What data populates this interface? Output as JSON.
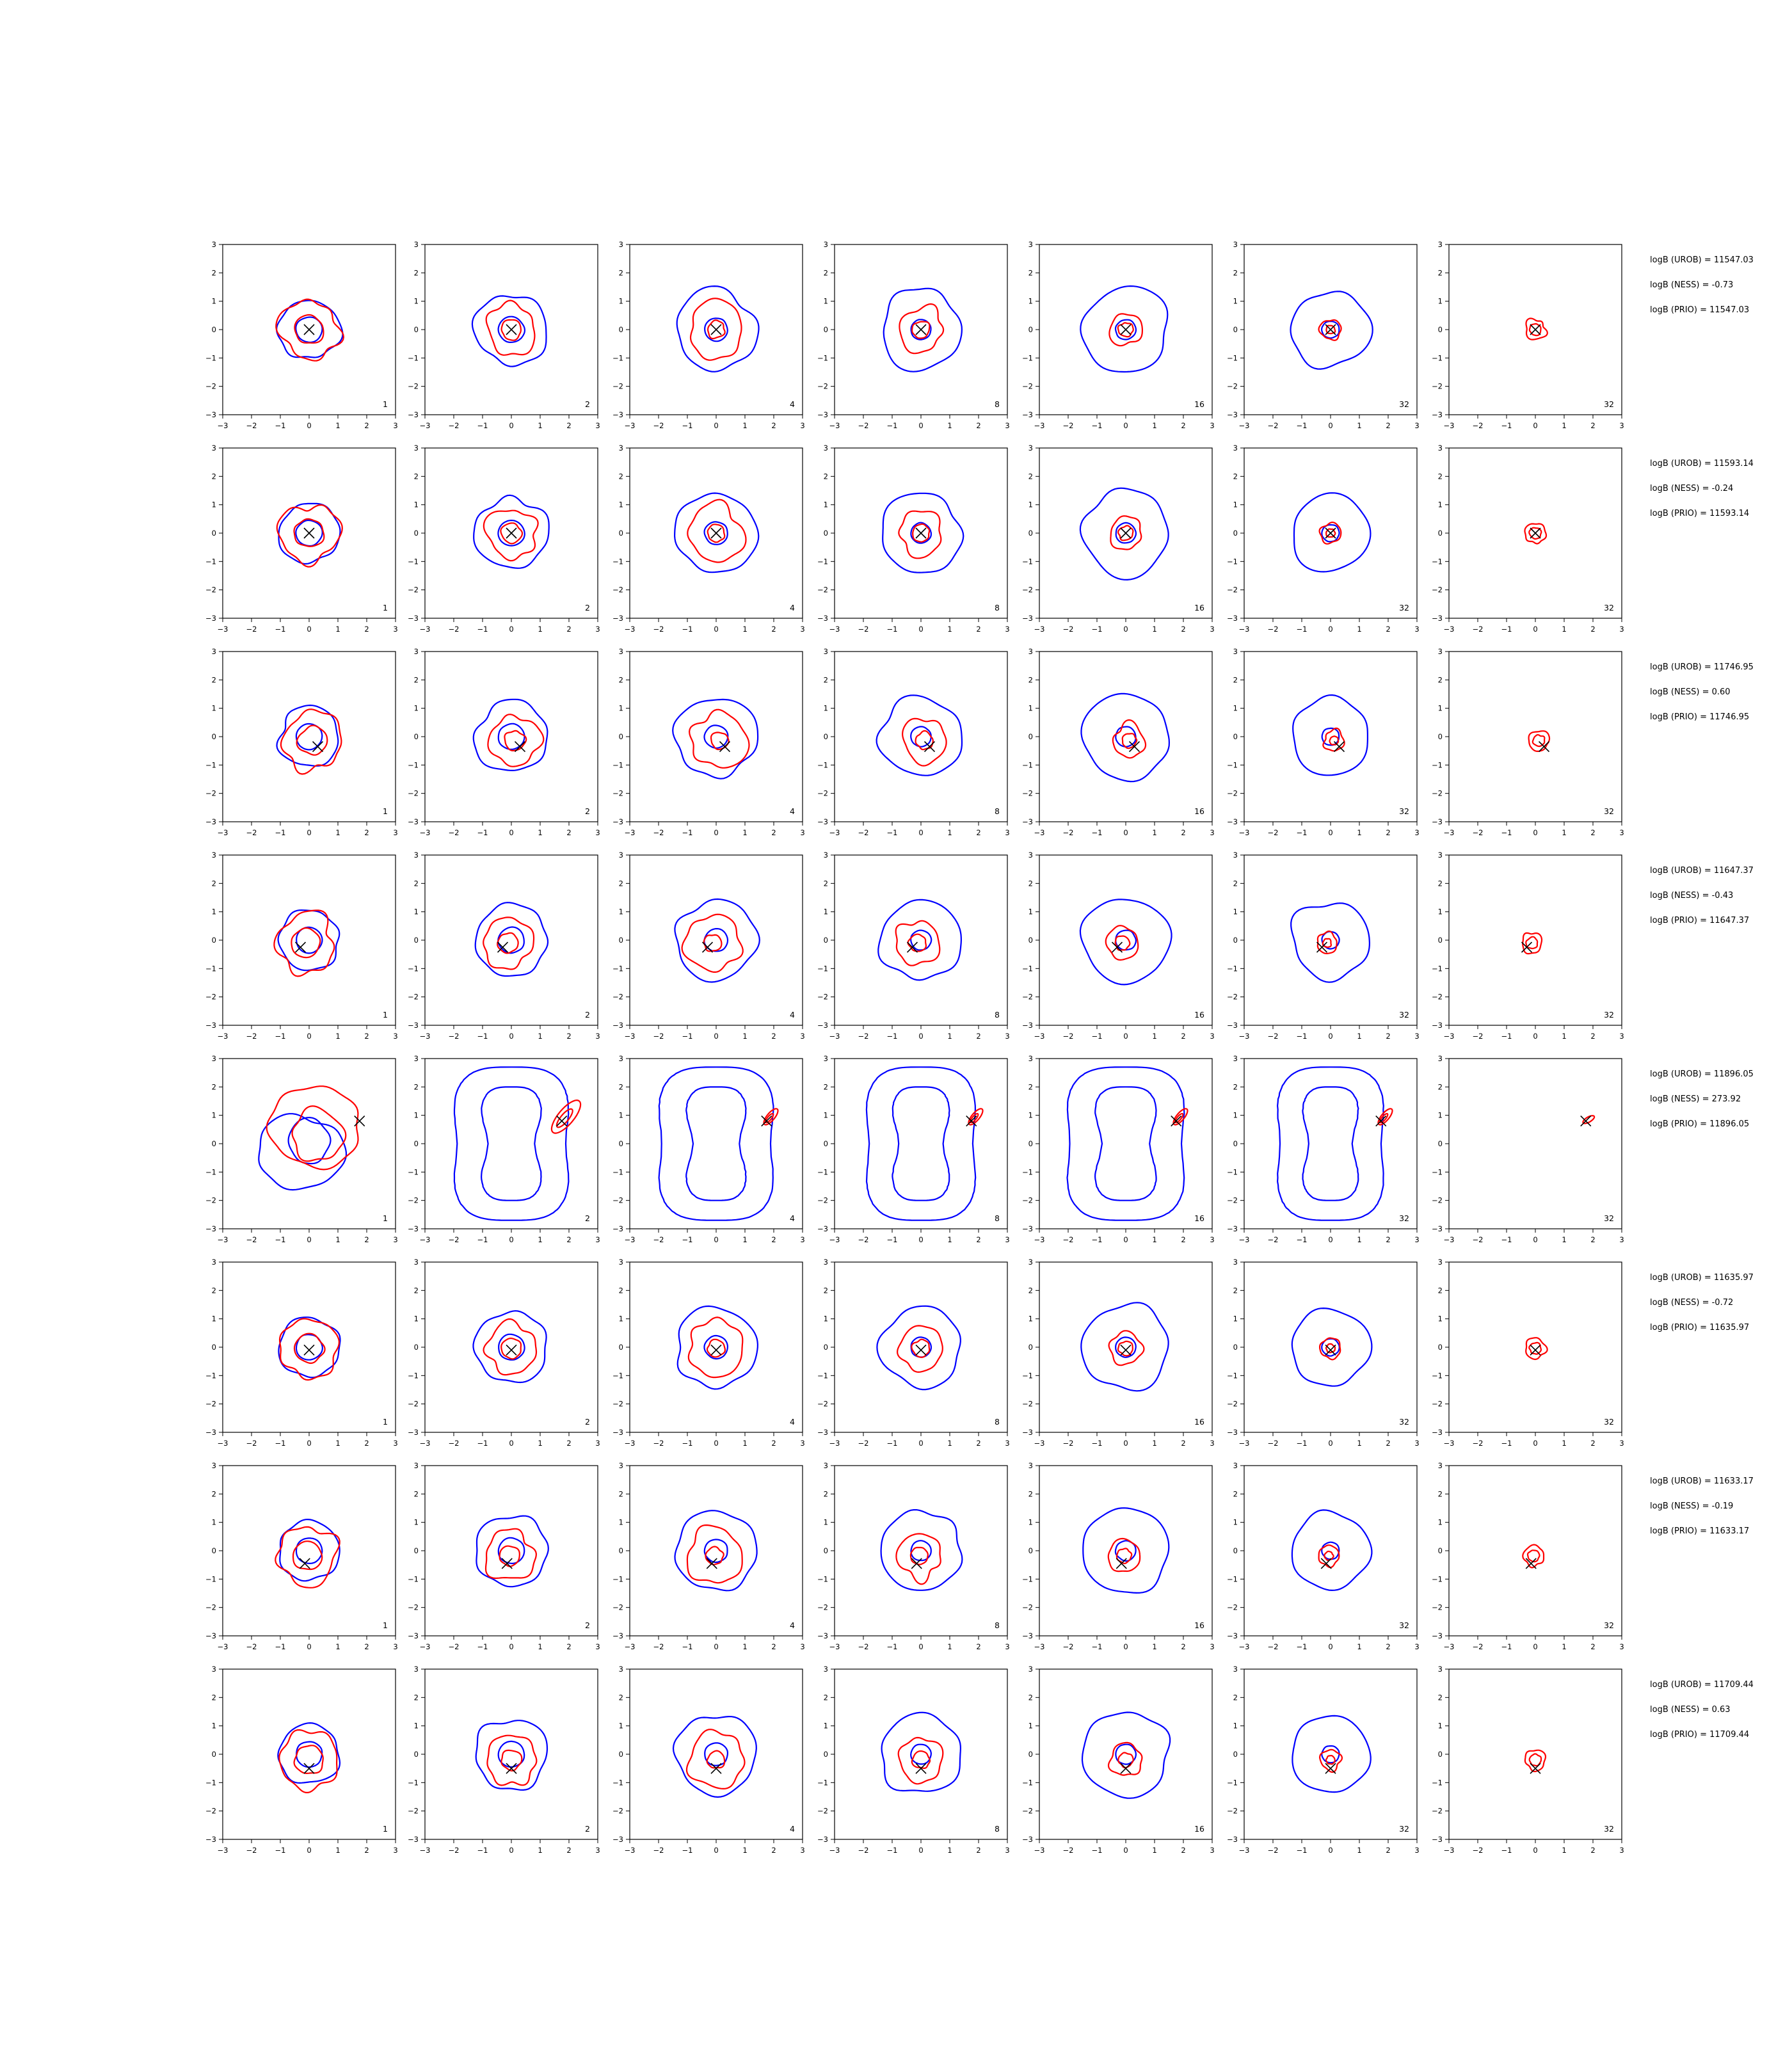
{
  "chart_data": {
    "type": "contour-grid",
    "rows": 8,
    "columns": 7,
    "xlim": [
      -3,
      3
    ],
    "ylim": [
      -3,
      3
    ],
    "xticks": [
      "−3",
      "−2",
      "−1",
      "0",
      "1",
      "2",
      "3"
    ],
    "yticks": [
      "3",
      "2",
      "1",
      "0",
      "−1",
      "−2",
      "−3"
    ],
    "grid": false,
    "legend": "none",
    "series_colors": {
      "outer_contours": "#0000ff",
      "inner_contours": "#ff0000",
      "marker": "#000000"
    },
    "column_labels": [
      "1",
      "2",
      "4",
      "8",
      "16",
      "32",
      "32"
    ],
    "rows_data": [
      {
        "marker": [
          0.0,
          0.0
        ],
        "ness": -0.73,
        "stats": [
          "logB (UROB) = 11547.03",
          "logB (NESS) = -0.73",
          "logB (PRIO) = 11547.03"
        ]
      },
      {
        "marker": [
          0.0,
          0.0
        ],
        "ness": -0.24,
        "stats": [
          "logB (UROB) = 11593.14",
          "logB (NESS) = -0.24",
          "logB (PRIO) = 11593.14"
        ]
      },
      {
        "marker": [
          0.3,
          -0.35
        ],
        "ness": 0.6,
        "stats": [
          "logB (UROB) = 11746.95",
          "logB (NESS) = 0.60",
          "logB (PRIO) = 11746.95"
        ]
      },
      {
        "marker": [
          -0.3,
          -0.25
        ],
        "ness": -0.43,
        "stats": [
          "logB (UROB) = 11647.37",
          "logB (NESS) = -0.43",
          "logB (PRIO) = 11647.37"
        ]
      },
      {
        "marker": [
          1.75,
          0.8
        ],
        "ness": 273.92,
        "stats": [
          "logB (UROB) = 11896.05",
          "logB (NESS) = 273.92",
          "logB (PRIO) = 11896.05"
        ]
      },
      {
        "marker": [
          0.0,
          -0.1
        ],
        "ness": -0.72,
        "stats": [
          "logB (UROB) = 11635.97",
          "logB (NESS) = -0.72",
          "logB (PRIO) = 11635.97"
        ]
      },
      {
        "marker": [
          -0.15,
          -0.45
        ],
        "ness": -0.19,
        "stats": [
          "logB (UROB) = 11633.17",
          "logB (NESS) = -0.19",
          "logB (PRIO) = 11633.17"
        ]
      },
      {
        "marker": [
          0.0,
          -0.5
        ],
        "ness": 0.63,
        "stats": [
          "logB (UROB) = 11709.44",
          "logB (NESS) = 0.63",
          "logB (PRIO) = 11709.44"
        ]
      }
    ]
  }
}
